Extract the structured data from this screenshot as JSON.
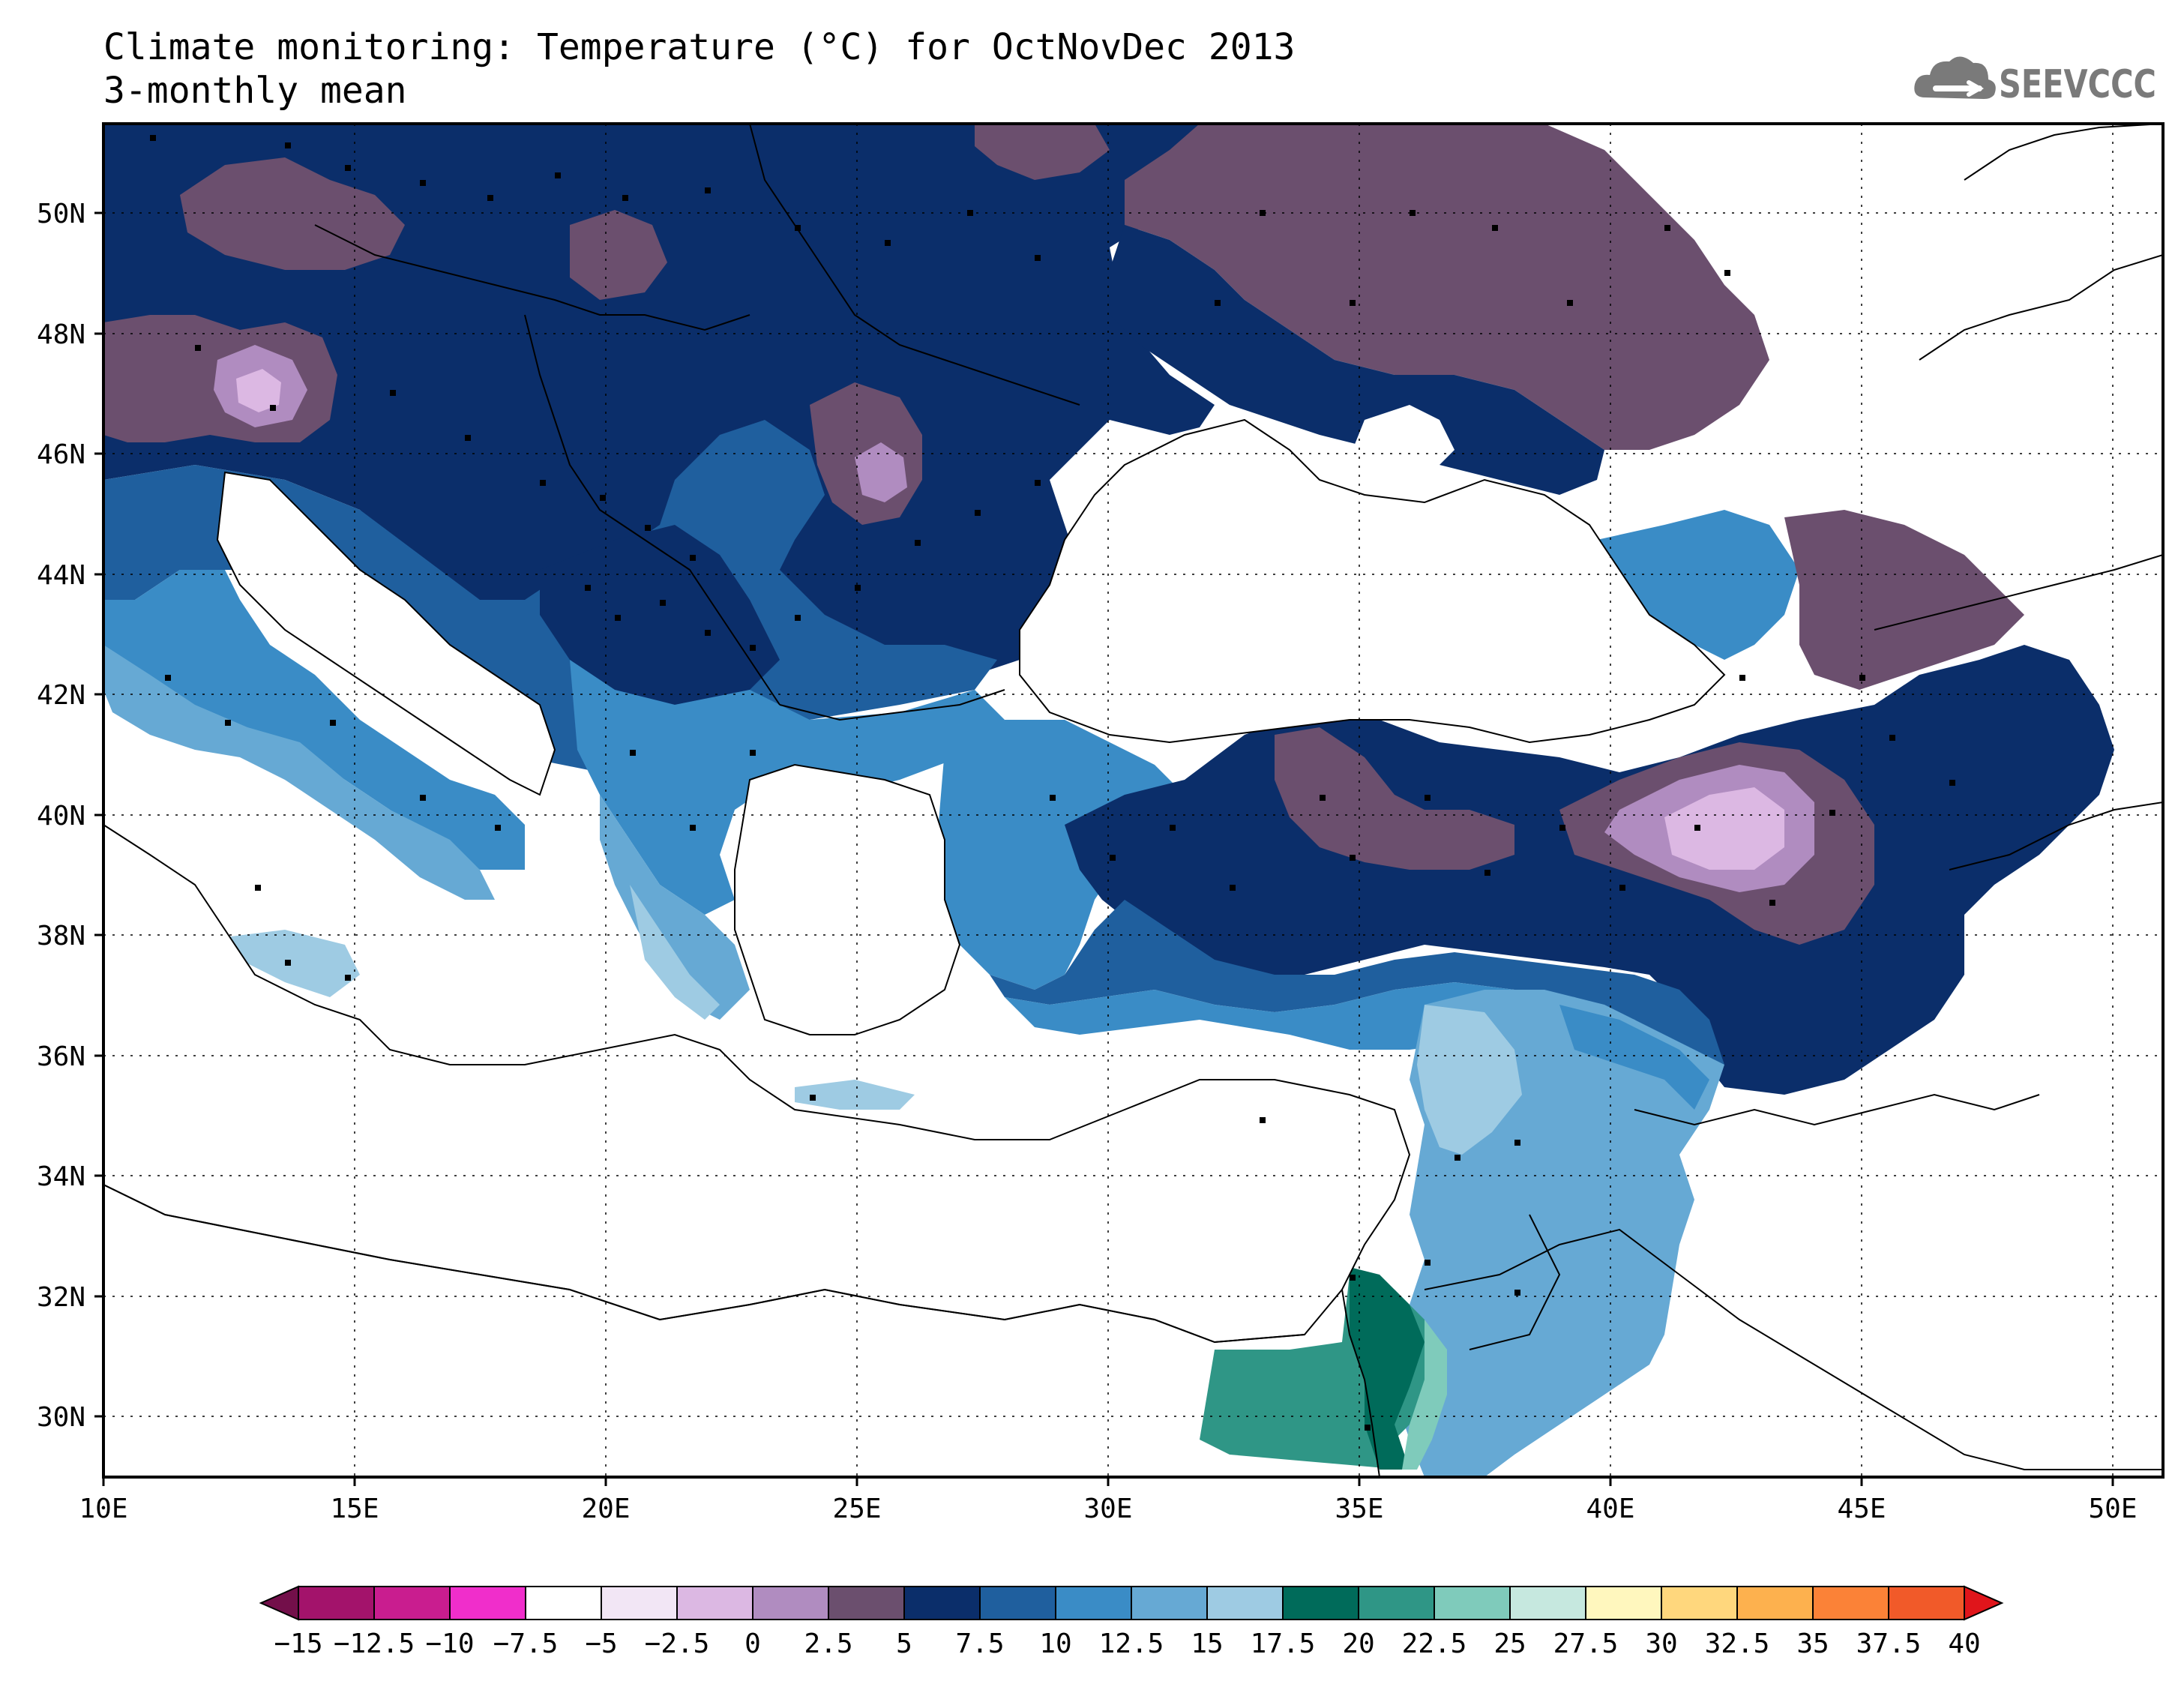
{
  "title": {
    "line1": "Climate monitoring: Temperature (°C) for OctNovDec 2013",
    "line2": "3-monthly mean"
  },
  "logo": {
    "text": "SEEVCCC",
    "icon": "cloud-icon"
  },
  "map": {
    "lon_range": [
      10,
      51
    ],
    "lat_range": [
      29,
      51.5
    ],
    "lat_ticks": [
      "50N",
      "48N",
      "46N",
      "44N",
      "42N",
      "40N",
      "38N",
      "36N",
      "34N",
      "32N",
      "30N"
    ],
    "lon_ticks": [
      "10E",
      "15E",
      "20E",
      "25E",
      "30E",
      "35E",
      "40E",
      "45E",
      "50E"
    ],
    "grid": "dotted"
  },
  "colorbar": {
    "labels": [
      "-15",
      "-12.5",
      "-10",
      "-7.5",
      "-5",
      "-2.5",
      "0",
      "2.5",
      "5",
      "7.5",
      "10",
      "12.5",
      "15",
      "17.5",
      "20",
      "22.5",
      "25",
      "27.5",
      "30",
      "32.5",
      "35",
      "37.5",
      "40"
    ],
    "colors": [
      "#730f4a",
      "#a3136b",
      "#c91d8f",
      "#f02ecb",
      "#ffffff",
      "#f2e6f5",
      "#dcb8e3",
      "#b08cc0",
      "#6b4f6e",
      "#0b2e6a",
      "#1f5f9e",
      "#3a8cc6",
      "#66a9d4",
      "#9ecbe3",
      "#006b5a",
      "#2f9686",
      "#7fcbbb",
      "#c6e8df",
      "#fff7be",
      "#ffd77d",
      "#fdb14e",
      "#fb8237",
      "#f15a29",
      "#e0151b"
    ]
  },
  "colors": {
    "sea": "#ffffff",
    "dark_purple": "#6b4f6e",
    "mid_purple": "#b08cc0",
    "light_purple": "#dcb8e3",
    "navy": "#0b2e6a",
    "blue10": "#1f5f9e",
    "blue12": "#3a8cc6",
    "blue15": "#66a9d4",
    "blue17": "#9ecbe3",
    "teal20": "#006b5a",
    "teal22": "#2f9686",
    "teal25": "#7fcbbb"
  }
}
